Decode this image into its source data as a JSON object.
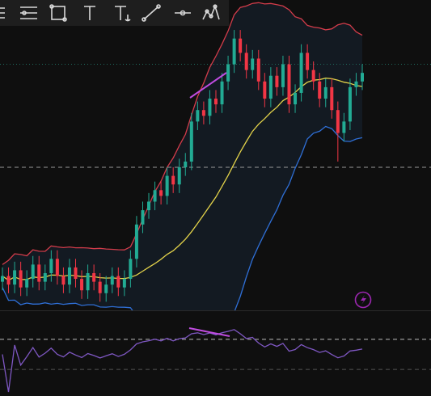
{
  "chart_data": {
    "type": "candlestick",
    "open": [
      10,
      12,
      9,
      14,
      8,
      11,
      16,
      10,
      13,
      18,
      12,
      9,
      15,
      11,
      7,
      13,
      10,
      6,
      9,
      12,
      8,
      11,
      18,
      30,
      35,
      38,
      42,
      40,
      47,
      44,
      50,
      52,
      66,
      70,
      68,
      74,
      72,
      80,
      86,
      95,
      90,
      84,
      88,
      80,
      74,
      82,
      78,
      86,
      72,
      76,
      90,
      84,
      80,
      74,
      78,
      70,
      62,
      66,
      78,
      80
    ],
    "high": [
      15,
      15,
      17,
      17,
      14,
      19,
      19,
      16,
      21,
      21,
      15,
      18,
      18,
      14,
      16,
      16,
      13,
      12,
      15,
      15,
      14,
      21,
      33,
      38,
      41,
      45,
      45,
      50,
      50,
      53,
      55,
      69,
      73,
      73,
      77,
      77,
      83,
      89,
      98,
      98,
      93,
      91,
      91,
      83,
      85,
      85,
      89,
      89,
      79,
      93,
      93,
      87,
      83,
      81,
      81,
      73,
      69,
      81,
      83,
      86
    ],
    "low": [
      7,
      6,
      6,
      5,
      5,
      8,
      7,
      7,
      10,
      9,
      6,
      6,
      8,
      4,
      4,
      7,
      3,
      3,
      6,
      5,
      5,
      8,
      15,
      27,
      32,
      35,
      37,
      37,
      41,
      41,
      47,
      49,
      63,
      65,
      65,
      69,
      69,
      77,
      83,
      87,
      81,
      81,
      77,
      71,
      71,
      75,
      75,
      69,
      69,
      73,
      81,
      77,
      71,
      71,
      67,
      52,
      59,
      63,
      75,
      77
    ],
    "close": [
      12,
      9,
      14,
      8,
      11,
      16,
      10,
      13,
      18,
      12,
      9,
      15,
      11,
      7,
      13,
      10,
      6,
      9,
      12,
      8,
      11,
      18,
      30,
      35,
      38,
      42,
      40,
      47,
      44,
      50,
      52,
      66,
      70,
      68,
      74,
      72,
      80,
      86,
      95,
      90,
      84,
      88,
      80,
      74,
      82,
      78,
      86,
      72,
      76,
      90,
      84,
      80,
      74,
      78,
      70,
      62,
      66,
      78,
      80,
      83
    ],
    "up_color": "#22ab94",
    "down_color": "#f23645",
    "ylim": [
      0,
      100
    ],
    "reference_lines": [
      50,
      86
    ],
    "rsi_ylim": [
      0,
      100
    ],
    "rsi_levels": [
      70,
      30
    ]
  }
}
